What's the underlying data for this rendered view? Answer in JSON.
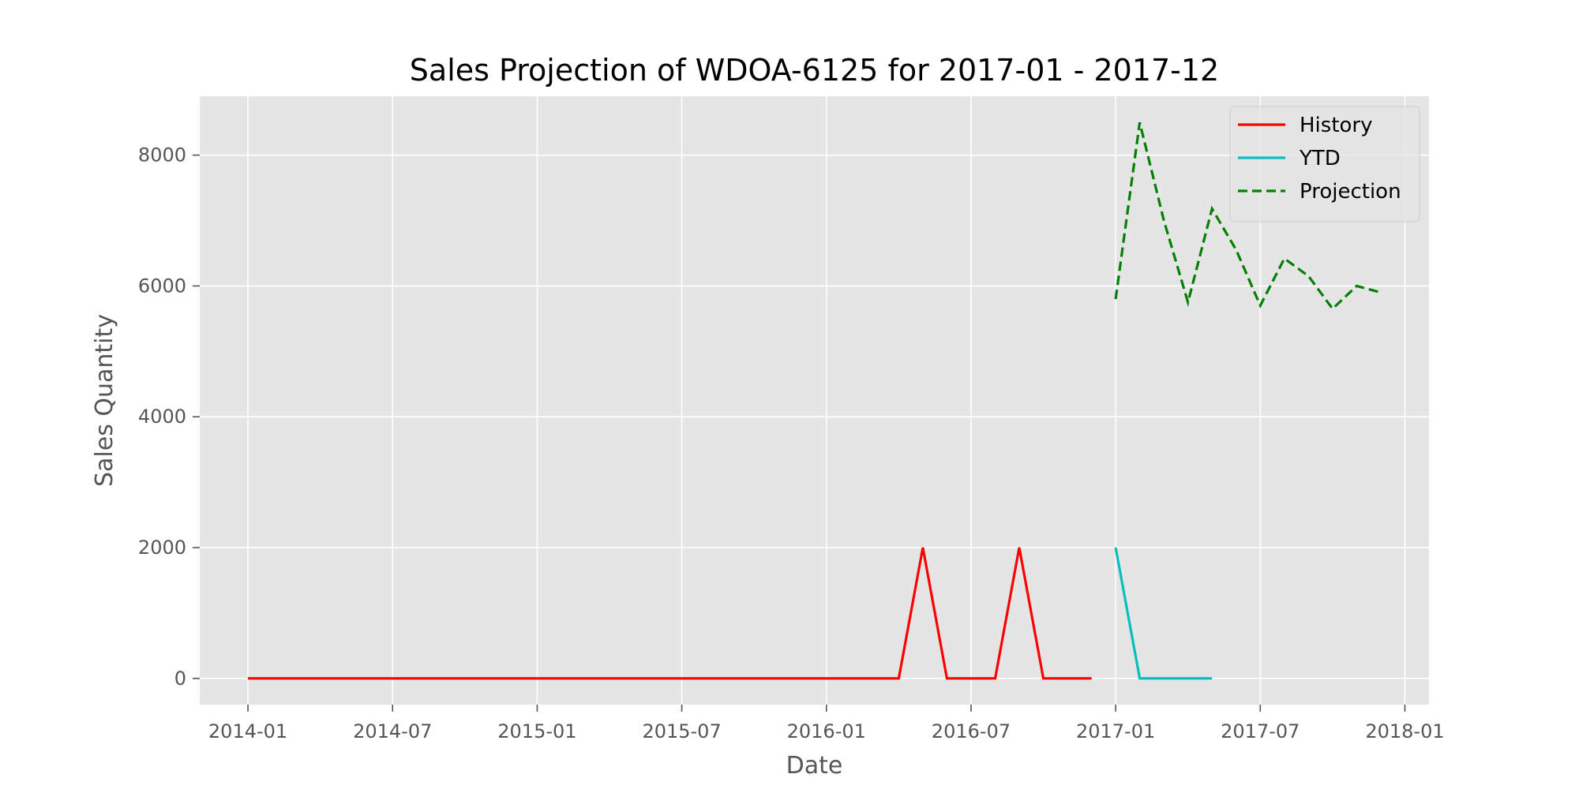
{
  "chart_data": {
    "type": "line",
    "title": "Sales Projection of WDOA-6125 for 2017-01 - 2017-12",
    "xlabel": "Date",
    "ylabel": "Sales Quantity",
    "xlim": [
      "2013-11",
      "2018-02"
    ],
    "ylim": [
      -400,
      8900
    ],
    "grid": true,
    "legend_position": "top-right",
    "x_ticks": [
      "2014-01",
      "2014-07",
      "2015-01",
      "2015-07",
      "2016-01",
      "2016-07",
      "2017-01",
      "2017-07",
      "2018-01"
    ],
    "y_ticks": [
      0,
      2000,
      4000,
      6000,
      8000
    ],
    "series": [
      {
        "name": "History",
        "color": "#ff0000",
        "style": "solid",
        "points": [
          {
            "x": "2014-01",
            "y": 0
          },
          {
            "x": "2014-02",
            "y": 0
          },
          {
            "x": "2014-03",
            "y": 0
          },
          {
            "x": "2014-04",
            "y": 0
          },
          {
            "x": "2014-05",
            "y": 0
          },
          {
            "x": "2014-06",
            "y": 0
          },
          {
            "x": "2014-07",
            "y": 0
          },
          {
            "x": "2014-08",
            "y": 0
          },
          {
            "x": "2014-09",
            "y": 0
          },
          {
            "x": "2014-10",
            "y": 0
          },
          {
            "x": "2014-11",
            "y": 0
          },
          {
            "x": "2014-12",
            "y": 0
          },
          {
            "x": "2015-01",
            "y": 0
          },
          {
            "x": "2015-02",
            "y": 0
          },
          {
            "x": "2015-03",
            "y": 0
          },
          {
            "x": "2015-04",
            "y": 0
          },
          {
            "x": "2015-05",
            "y": 0
          },
          {
            "x": "2015-06",
            "y": 0
          },
          {
            "x": "2015-07",
            "y": 0
          },
          {
            "x": "2015-08",
            "y": 0
          },
          {
            "x": "2015-09",
            "y": 0
          },
          {
            "x": "2015-10",
            "y": 0
          },
          {
            "x": "2015-11",
            "y": 0
          },
          {
            "x": "2015-12",
            "y": 0
          },
          {
            "x": "2016-01",
            "y": 0
          },
          {
            "x": "2016-02",
            "y": 0
          },
          {
            "x": "2016-03",
            "y": 0
          },
          {
            "x": "2016-04",
            "y": 0
          },
          {
            "x": "2016-05",
            "y": 2000
          },
          {
            "x": "2016-06",
            "y": 0
          },
          {
            "x": "2016-07",
            "y": 0
          },
          {
            "x": "2016-08",
            "y": 0
          },
          {
            "x": "2016-09",
            "y": 2000
          },
          {
            "x": "2016-10",
            "y": 0
          },
          {
            "x": "2016-11",
            "y": 0
          },
          {
            "x": "2016-12",
            "y": 0
          }
        ]
      },
      {
        "name": "YTD",
        "color": "#00bfbf",
        "style": "solid",
        "points": [
          {
            "x": "2017-01",
            "y": 2000
          },
          {
            "x": "2017-02",
            "y": 0
          },
          {
            "x": "2017-03",
            "y": 0
          },
          {
            "x": "2017-04",
            "y": 0
          },
          {
            "x": "2017-05",
            "y": 0
          }
        ]
      },
      {
        "name": "Projection",
        "color": "#008000",
        "style": "dashed",
        "points": [
          {
            "x": "2017-01",
            "y": 5800
          },
          {
            "x": "2017-02",
            "y": 8500
          },
          {
            "x": "2017-03",
            "y": 7000
          },
          {
            "x": "2017-04",
            "y": 5750
          },
          {
            "x": "2017-05",
            "y": 7180
          },
          {
            "x": "2017-06",
            "y": 6550
          },
          {
            "x": "2017-07",
            "y": 5700
          },
          {
            "x": "2017-08",
            "y": 6420
          },
          {
            "x": "2017-09",
            "y": 6150
          },
          {
            "x": "2017-10",
            "y": 5650
          },
          {
            "x": "2017-11",
            "y": 6000
          },
          {
            "x": "2017-12",
            "y": 5900
          }
        ]
      }
    ]
  }
}
